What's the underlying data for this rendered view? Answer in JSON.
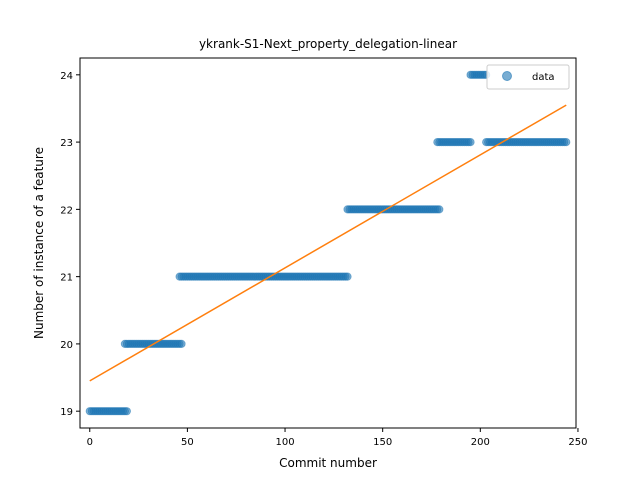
{
  "chart_data": {
    "type": "scatter",
    "title": "ykrank-S1-Next_property_delegation-linear",
    "xlabel": "Commit number",
    "ylabel": "Number of instance of a feature",
    "xlim": [
      -5,
      249
    ],
    "ylim": [
      18.75,
      24.25
    ],
    "xticks": [
      0,
      50,
      100,
      150,
      200,
      250
    ],
    "yticks": [
      19,
      20,
      21,
      22,
      23,
      24
    ],
    "grid": false,
    "legend": {
      "position": "top-right",
      "entries": [
        "data"
      ]
    },
    "colors": {
      "points": "#1f77b4",
      "fit": "#ff7f0e"
    },
    "series": [
      {
        "name": "data",
        "kind": "scatter",
        "segments": [
          {
            "x_start": 0,
            "x_end": 19,
            "y": 19
          },
          {
            "x_start": 18,
            "x_end": 47,
            "y": 20
          },
          {
            "x_start": 46,
            "x_end": 132,
            "y": 21
          },
          {
            "x_start": 132,
            "x_end": 179,
            "y": 22
          },
          {
            "x_start": 178,
            "x_end": 195,
            "y": 23
          },
          {
            "x_start": 195,
            "x_end": 203,
            "y": 24
          },
          {
            "x_start": 203,
            "x_end": 244,
            "y": 23
          }
        ]
      },
      {
        "kind": "line",
        "x": [
          0,
          244
        ],
        "y": [
          19.45,
          23.55
        ]
      }
    ]
  }
}
